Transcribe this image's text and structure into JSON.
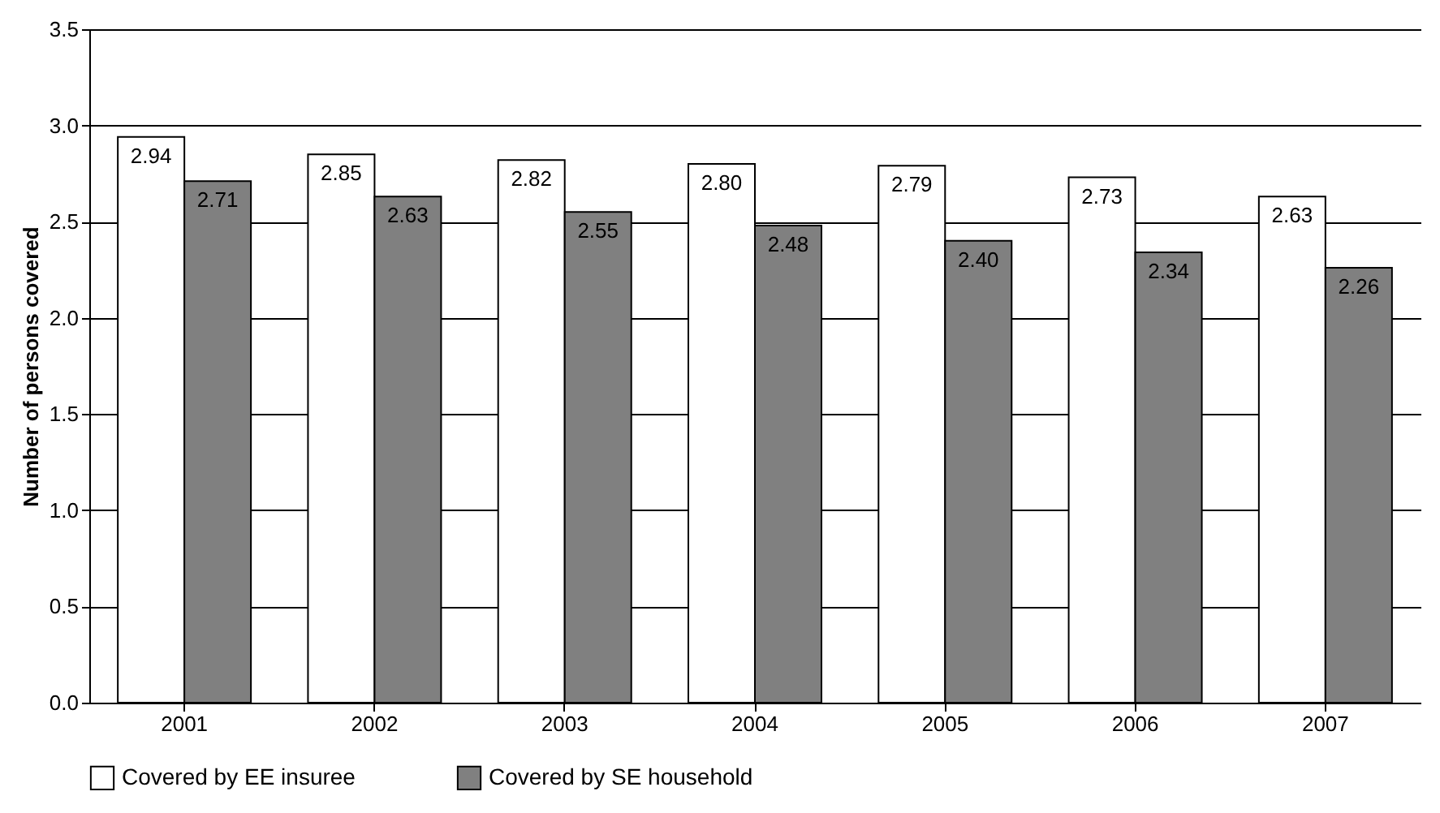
{
  "chart_data": {
    "type": "bar",
    "ylabel": "Number of persons covered",
    "categories": [
      "2001",
      "2002",
      "2003",
      "2004",
      "2005",
      "2006",
      "2007"
    ],
    "series": [
      {
        "name": "Covered by EE insuree",
        "color": "#ffffff",
        "values": [
          2.94,
          2.85,
          2.82,
          2.8,
          2.79,
          2.73,
          2.63
        ],
        "value_labels": [
          "2.94",
          "2.85",
          "2.82",
          "2.80",
          "2.79",
          "2.73",
          "2.63"
        ]
      },
      {
        "name": "Covered by SE household",
        "color": "#808080",
        "values": [
          2.71,
          2.63,
          2.55,
          2.48,
          2.4,
          2.34,
          2.26
        ],
        "value_labels": [
          "2.71",
          "2.63",
          "2.55",
          "2.48",
          "2.40",
          "2.34",
          "2.26"
        ]
      }
    ],
    "ylim": [
      0,
      3.5
    ],
    "yticks": [
      {
        "value": 0,
        "label": "0.0"
      },
      0.5,
      {
        "value": 1,
        "label": "1.0"
      },
      1.5,
      {
        "value": 2,
        "label": "2.0"
      },
      2.5,
      {
        "value": 3,
        "label": "3.0"
      },
      3.5
    ],
    "grid": "y",
    "legend": "bottom"
  }
}
